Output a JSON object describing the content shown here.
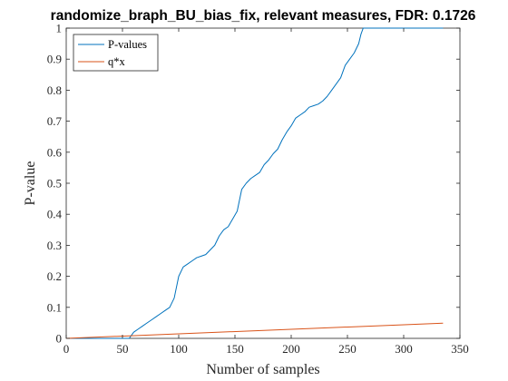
{
  "chart_data": {
    "type": "line",
    "title": "randomize_braph_BU_bias_fix, relevant measures, FDR: 0.1726",
    "xlabel": "Number of samples",
    "ylabel": "P-value",
    "xlim": [
      0,
      350
    ],
    "ylim": [
      0,
      1
    ],
    "xticks": [
      0,
      50,
      100,
      150,
      200,
      250,
      300,
      350
    ],
    "yticks": [
      0,
      0.1,
      0.2,
      0.3,
      0.4,
      0.5,
      0.6,
      0.7,
      0.8,
      0.9,
      1
    ],
    "grid": false,
    "legend_position": "top-left",
    "series": [
      {
        "name": "P-values",
        "color": "#0072BD",
        "x": [
          1,
          56,
          60,
          64,
          68,
          72,
          76,
          80,
          84,
          88,
          92,
          96,
          100,
          104,
          108,
          112,
          116,
          120,
          124,
          128,
          132,
          136,
          140,
          144,
          148,
          152,
          156,
          160,
          164,
          168,
          172,
          176,
          180,
          184,
          188,
          192,
          196,
          200,
          204,
          208,
          212,
          216,
          220,
          224,
          228,
          232,
          236,
          240,
          244,
          248,
          252,
          256,
          260,
          262,
          264,
          268,
          280,
          300,
          320,
          335
        ],
        "y": [
          0,
          0,
          0.02,
          0.03,
          0.04,
          0.05,
          0.06,
          0.07,
          0.08,
          0.09,
          0.1,
          0.13,
          0.2,
          0.23,
          0.24,
          0.25,
          0.26,
          0.265,
          0.27,
          0.285,
          0.3,
          0.33,
          0.35,
          0.36,
          0.385,
          0.41,
          0.48,
          0.5,
          0.515,
          0.525,
          0.535,
          0.56,
          0.575,
          0.595,
          0.61,
          0.64,
          0.665,
          0.685,
          0.71,
          0.72,
          0.73,
          0.745,
          0.75,
          0.755,
          0.765,
          0.78,
          0.8,
          0.82,
          0.84,
          0.88,
          0.9,
          0.92,
          0.95,
          0.98,
          1,
          1,
          1,
          1,
          1,
          1
        ]
      },
      {
        "name": "q*x",
        "color": "#D95319",
        "x": [
          0,
          335
        ],
        "y": [
          0,
          0.049
        ]
      }
    ]
  }
}
